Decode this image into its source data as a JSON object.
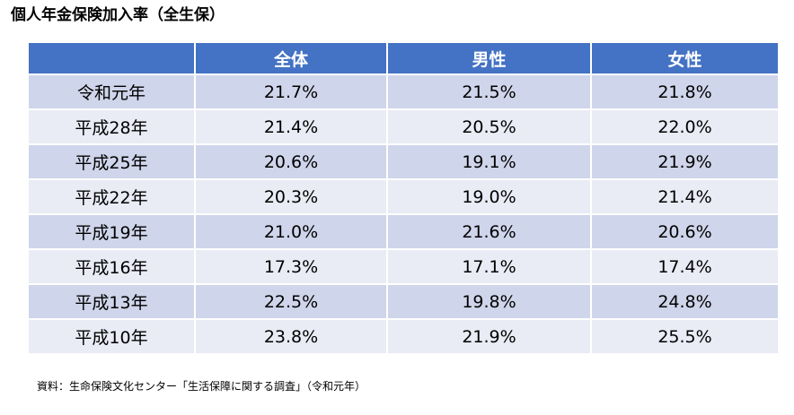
{
  "title": "個人年金保険加入率（全生保）",
  "table": {
    "columns": [
      "",
      "全体",
      "男性",
      "女性"
    ],
    "rows": [
      {
        "label": "令和元年",
        "total": "21.7%",
        "male": "21.5%",
        "female": "21.8%"
      },
      {
        "label": "平成28年",
        "total": "21.4%",
        "male": "20.5%",
        "female": "22.0%"
      },
      {
        "label": "平成25年",
        "total": "20.6%",
        "male": "19.1%",
        "female": "21.9%"
      },
      {
        "label": "平成22年",
        "total": "20.3%",
        "male": "19.0%",
        "female": "21.4%"
      },
      {
        "label": "平成19年",
        "total": "21.0%",
        "male": "21.6%",
        "female": "20.6%"
      },
      {
        "label": "平成16年",
        "total": "17.3%",
        "male": "17.1%",
        "female": "17.4%"
      },
      {
        "label": "平成13年",
        "total": "22.5%",
        "male": "19.8%",
        "female": "24.8%"
      },
      {
        "label": "平成10年",
        "total": "23.8%",
        "male": "21.9%",
        "female": "25.5%"
      }
    ]
  },
  "source": "資料：生命保険文化センター「生活保障に関する調査」（令和元年）",
  "colors": {
    "header_bg": "#4472c4",
    "row_band_dark": "#cfd5ea",
    "row_band_light": "#e9ebf5"
  }
}
